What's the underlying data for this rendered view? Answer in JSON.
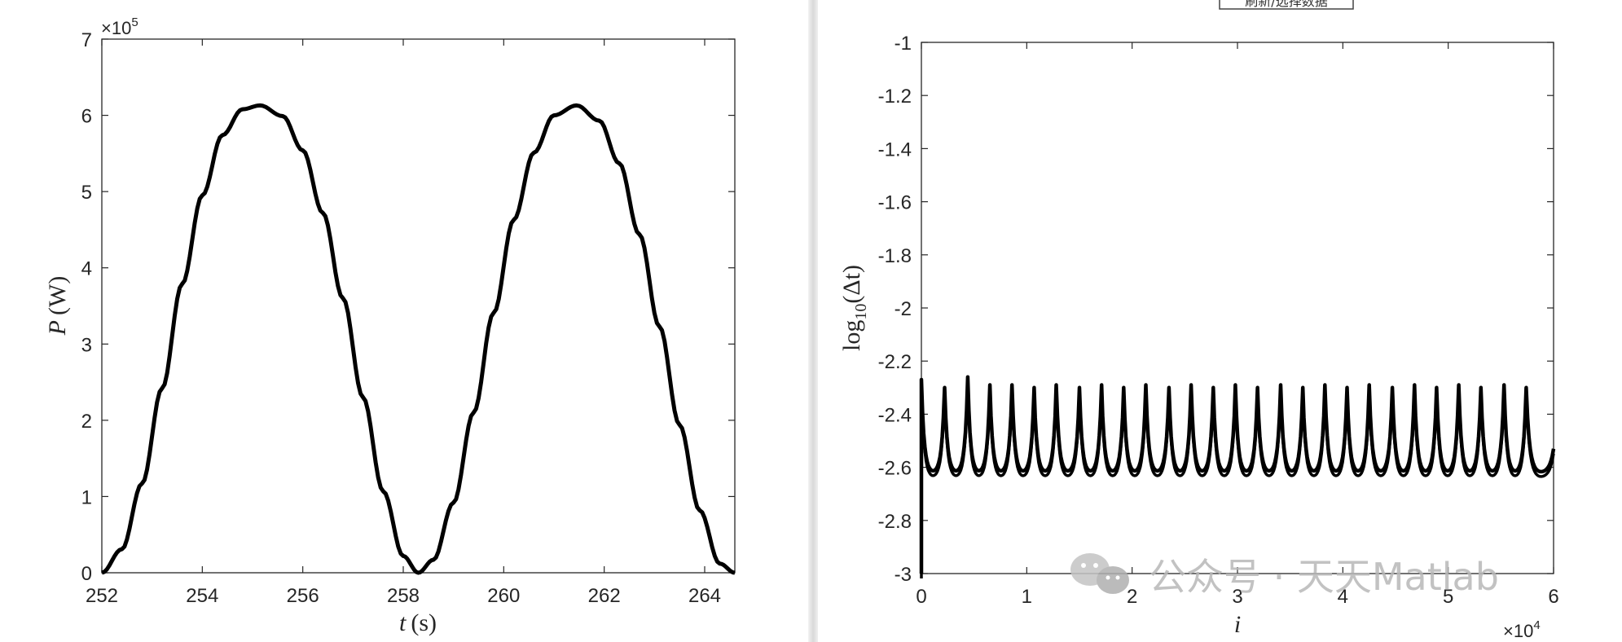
{
  "chart_data": [
    {
      "type": "line",
      "title": "",
      "xlabel": "t (s)",
      "xlabel_var": "t",
      "xlabel_unit": "(s)",
      "ylabel": "P (W)",
      "ylabel_var": "P",
      "ylabel_unit": "(W)",
      "xlim": [
        252,
        264.6
      ],
      "ylim": [
        0,
        7
      ],
      "y_multiplier": "×10",
      "y_multiplier_exp": "5",
      "xticks": [
        252,
        254,
        256,
        258,
        260,
        262,
        264
      ],
      "yticks": [
        0,
        1,
        2,
        3,
        4,
        5,
        6,
        7
      ],
      "grid": false,
      "series": [
        {
          "x": [
            252.0,
            252.4,
            252.8,
            253.2,
            253.6,
            254.0,
            254.4,
            254.8,
            255.15,
            255.6,
            256.0,
            256.4,
            256.8,
            257.2,
            257.6,
            258.0,
            258.3,
            258.6,
            259.0,
            259.4,
            259.8,
            260.2,
            260.6,
            261.0,
            261.45,
            261.9,
            262.3,
            262.7,
            263.1,
            263.5,
            263.9,
            264.3,
            264.6
          ],
          "y": [
            0.0,
            0.31,
            1.17,
            2.42,
            3.79,
            4.95,
            5.74,
            6.08,
            6.13,
            5.99,
            5.54,
            4.72,
            3.6,
            2.3,
            1.07,
            0.22,
            0.0,
            0.17,
            0.92,
            2.1,
            3.41,
            4.63,
            5.51,
            6.0,
            6.13,
            5.93,
            5.37,
            4.44,
            3.23,
            1.94,
            0.82,
            0.12,
            0.0
          ]
        }
      ]
    },
    {
      "type": "line",
      "title": "",
      "xlabel": "i",
      "ylabel": "log10(Δt)",
      "ylabel_main": "log",
      "ylabel_sub": "10",
      "ylabel_arg": "(Δt)",
      "xlim": [
        0,
        6
      ],
      "ylim": [
        -3,
        -1
      ],
      "x_multiplier": "×10",
      "x_multiplier_exp": "4",
      "xticks": [
        0,
        1,
        2,
        3,
        4,
        5,
        6
      ],
      "yticks": [
        -1,
        -1.2,
        -1.4,
        -1.6,
        -1.8,
        -2,
        -2.2,
        -2.4,
        -2.6,
        -2.8,
        -3
      ],
      "ytick_labels": [
        "-1",
        "-1.2",
        "-1.4",
        "-1.6",
        "-1.8",
        "-2",
        "-2.2",
        "-2.4",
        "-2.6",
        "-2.8",
        "-3"
      ],
      "grid": false,
      "series": [
        {
          "baseline": -2.6,
          "start_drop": -3.0,
          "spike_x": [
            0.0,
            0.22,
            0.44,
            0.65,
            0.86,
            1.07,
            1.28,
            1.5,
            1.71,
            1.92,
            2.13,
            2.35,
            2.56,
            2.77,
            2.98,
            3.19,
            3.41,
            3.62,
            3.83,
            4.04,
            4.25,
            4.47,
            4.68,
            4.89,
            5.1,
            5.31,
            5.53,
            5.74
          ],
          "spike_peak": [
            -2.27,
            -2.3,
            -2.26,
            -2.29,
            -2.29,
            -2.3,
            -2.29,
            -2.3,
            -2.29,
            -2.3,
            -2.29,
            -2.3,
            -2.29,
            -2.3,
            -2.29,
            -2.3,
            -2.29,
            -2.3,
            -2.29,
            -2.3,
            -2.29,
            -2.3,
            -2.29,
            -2.3,
            -2.29,
            -2.3,
            -2.29,
            -2.3
          ],
          "end_value": -2.53
        }
      ]
    }
  ],
  "header_tag": "刷新/选择数据",
  "watermark": "公众号 · 天天Matlab"
}
